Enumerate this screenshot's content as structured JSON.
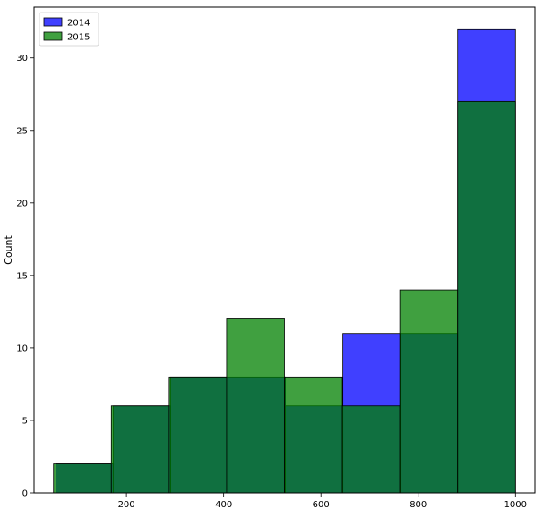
{
  "chart_data": {
    "type": "histogram",
    "xlabel": "",
    "ylabel": "Count",
    "xlim": [
      10,
      1040
    ],
    "ylim": [
      0,
      33.5
    ],
    "xticks": [
      200,
      400,
      600,
      800,
      1000
    ],
    "yticks": [
      0,
      5,
      10,
      15,
      20,
      25,
      30
    ],
    "legend": {
      "position": "top-left"
    },
    "series": [
      {
        "name": "2014",
        "color": "#0000ff",
        "bins": [
          {
            "x0": 55,
            "x1": 173,
            "value": 2
          },
          {
            "x0": 173,
            "x1": 291,
            "value": 6
          },
          {
            "x0": 291,
            "x1": 409,
            "value": 8
          },
          {
            "x0": 409,
            "x1": 527,
            "value": 8
          },
          {
            "x0": 527,
            "x1": 645,
            "value": 6
          },
          {
            "x0": 645,
            "x1": 763,
            "value": 11
          },
          {
            "x0": 763,
            "x1": 881,
            "value": 11
          },
          {
            "x0": 881,
            "x1": 1000,
            "value": 32
          }
        ]
      },
      {
        "name": "2015",
        "color": "#008000",
        "bins": [
          {
            "x0": 50,
            "x1": 169,
            "value": 2
          },
          {
            "x0": 169,
            "x1": 288,
            "value": 6
          },
          {
            "x0": 288,
            "x1": 406,
            "value": 8
          },
          {
            "x0": 406,
            "x1": 525,
            "value": 12
          },
          {
            "x0": 525,
            "x1": 644,
            "value": 8
          },
          {
            "x0": 644,
            "x1": 762,
            "value": 6
          },
          {
            "x0": 762,
            "x1": 881,
            "value": 14
          },
          {
            "x0": 881,
            "x1": 1000,
            "value": 27
          }
        ]
      }
    ]
  }
}
